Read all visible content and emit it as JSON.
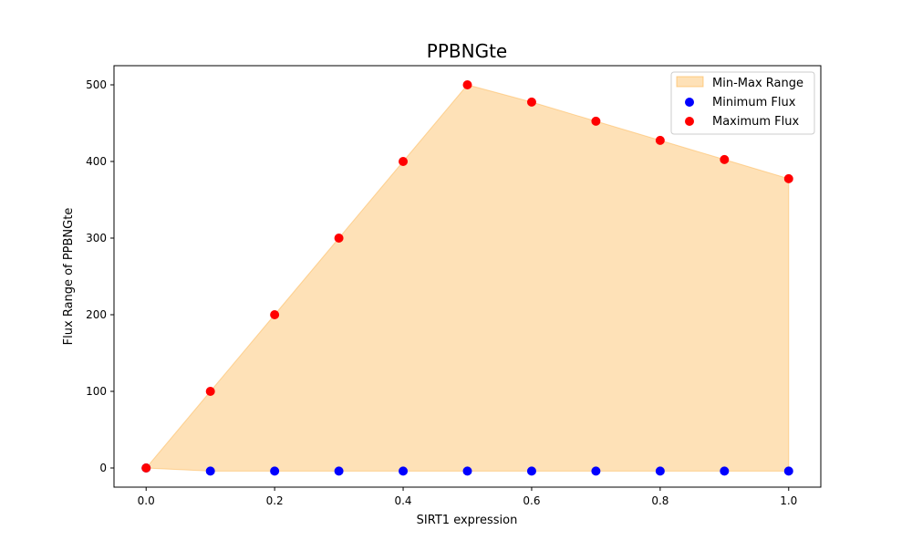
{
  "chart_data": {
    "type": "scatter",
    "title": "PPBNGte",
    "xlabel": "SIRT1 expression",
    "ylabel": "Flux Range of PPBNGte",
    "xlim": [
      -0.05,
      1.05
    ],
    "ylim": [
      -25,
      525
    ],
    "xticks": [
      0.0,
      0.2,
      0.4,
      0.6,
      0.8,
      1.0
    ],
    "xtick_labels": [
      "0.0",
      "0.2",
      "0.4",
      "0.6",
      "0.8",
      "1.0"
    ],
    "yticks": [
      0,
      100,
      200,
      300,
      400,
      500
    ],
    "ytick_labels": [
      "0",
      "100",
      "200",
      "300",
      "400",
      "500"
    ],
    "grid": false,
    "legend_position": "top-right",
    "x": [
      0.0,
      0.1,
      0.2,
      0.3,
      0.4,
      0.5,
      0.6,
      0.7,
      0.8,
      0.9,
      1.0
    ],
    "fill": {
      "name": "Min-Max Range",
      "color": "#fdb44b",
      "opacity": 0.4
    },
    "series": [
      {
        "name": "Minimum Flux",
        "color": "#0000ff",
        "values": [
          0,
          -4,
          -4,
          -4,
          -4,
          -4,
          -4,
          -4,
          -4,
          -4,
          -4
        ]
      },
      {
        "name": "Maximum Flux",
        "color": "#ff0000",
        "values": [
          0,
          100,
          200,
          300,
          400,
          500,
          477.5,
          452.5,
          427.5,
          402.5,
          377.5
        ]
      }
    ]
  }
}
